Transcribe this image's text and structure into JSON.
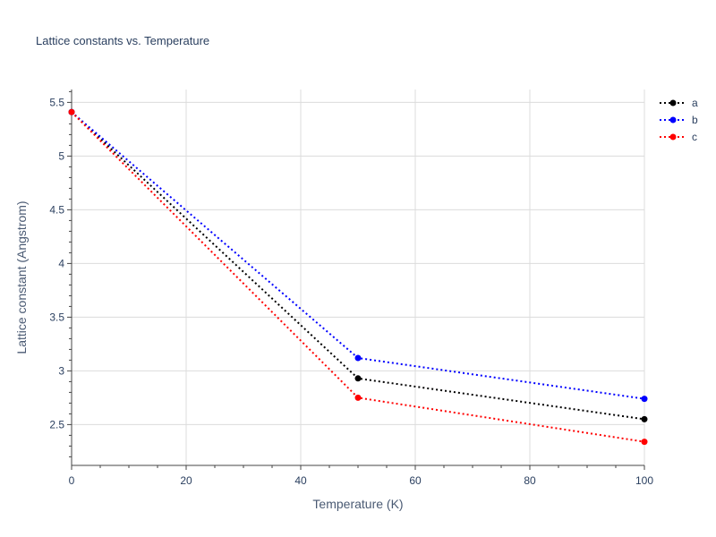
{
  "chart_data": {
    "type": "line",
    "title": "Lattice constants vs. Temperature",
    "xlabel": "Temperature (K)",
    "ylabel": "Lattice constant (Angstrom)",
    "xlim": [
      0,
      100
    ],
    "ylim": [
      2.12,
      5.62
    ],
    "x_ticks": [
      0,
      20,
      40,
      60,
      80,
      100
    ],
    "y_ticks": [
      2.5,
      3,
      3.5,
      4,
      4.5,
      5,
      5.5
    ],
    "x": [
      0,
      50,
      100
    ],
    "grid": true,
    "legend_position": "top-right",
    "series": [
      {
        "name": "a",
        "color": "#000000",
        "values": [
          5.41,
          2.93,
          2.55
        ]
      },
      {
        "name": "b",
        "color": "#0000ff",
        "values": [
          5.41,
          3.12,
          2.74
        ]
      },
      {
        "name": "c",
        "color": "#ff0000",
        "values": [
          5.41,
          2.75,
          2.34
        ]
      }
    ],
    "line_style": "dotted",
    "marker": "circle"
  }
}
